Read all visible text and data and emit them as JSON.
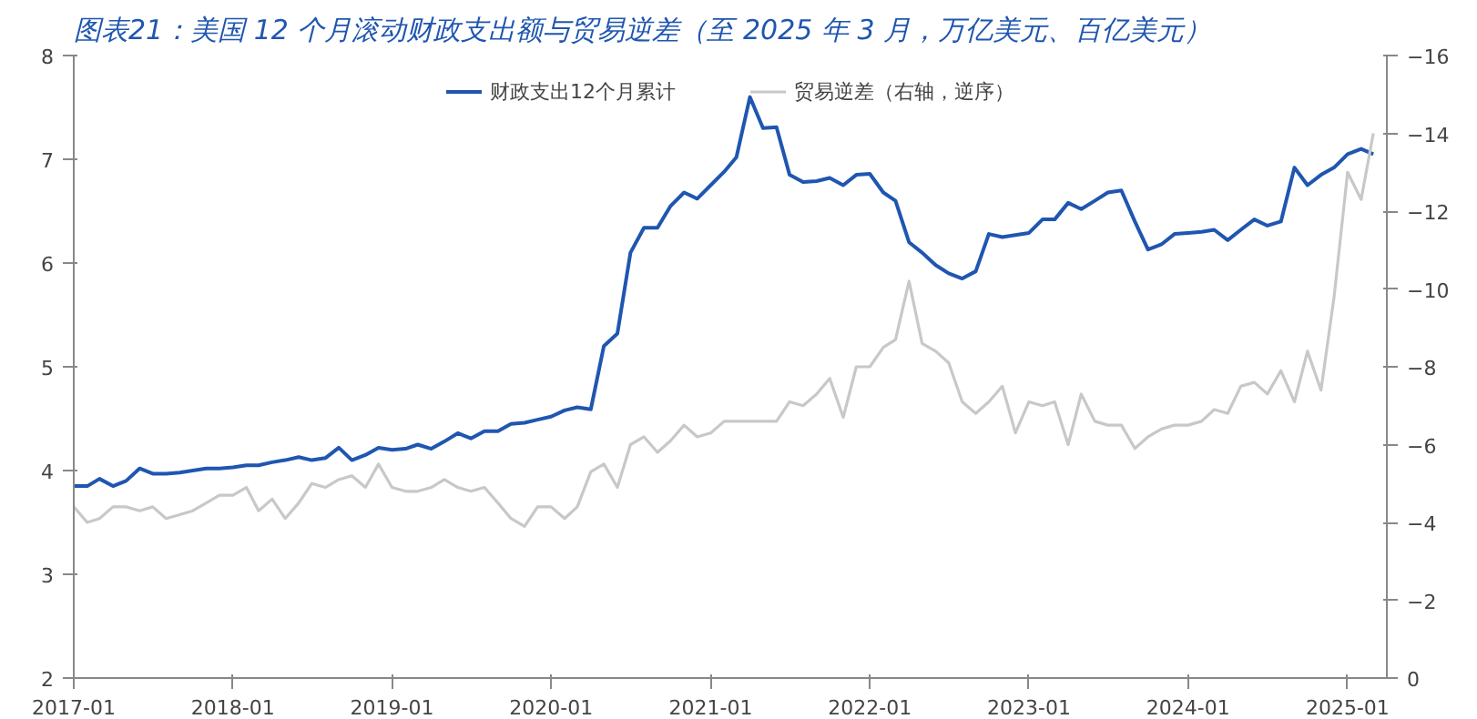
{
  "chart_data": {
    "type": "line",
    "title": "图表21：美国 12 个月滚动财政支出额与贸易逆差（至 2025 年 3 月，万亿美元、百亿美元）",
    "x": [
      "2017-01",
      "2017-02",
      "2017-03",
      "2017-04",
      "2017-05",
      "2017-06",
      "2017-07",
      "2017-08",
      "2017-09",
      "2017-10",
      "2017-11",
      "2017-12",
      "2018-01",
      "2018-02",
      "2018-03",
      "2018-04",
      "2018-05",
      "2018-06",
      "2018-07",
      "2018-08",
      "2018-09",
      "2018-10",
      "2018-11",
      "2018-12",
      "2019-01",
      "2019-02",
      "2019-03",
      "2019-04",
      "2019-05",
      "2019-06",
      "2019-07",
      "2019-08",
      "2019-09",
      "2019-10",
      "2019-11",
      "2019-12",
      "2020-01",
      "2020-02",
      "2020-03",
      "2020-04",
      "2020-05",
      "2020-06",
      "2020-07",
      "2020-08",
      "2020-09",
      "2020-10",
      "2020-11",
      "2020-12",
      "2021-01",
      "2021-02",
      "2021-03",
      "2021-04",
      "2021-05",
      "2021-06",
      "2021-07",
      "2021-08",
      "2021-09",
      "2021-10",
      "2021-11",
      "2021-12",
      "2022-01",
      "2022-02",
      "2022-03",
      "2022-04",
      "2022-05",
      "2022-06",
      "2022-07",
      "2022-08",
      "2022-09",
      "2022-10",
      "2022-11",
      "2022-12",
      "2023-01",
      "2023-02",
      "2023-03",
      "2023-04",
      "2023-05",
      "2023-06",
      "2023-07",
      "2023-08",
      "2023-09",
      "2023-10",
      "2023-11",
      "2023-12",
      "2024-01",
      "2024-02",
      "2024-03",
      "2024-04",
      "2024-05",
      "2024-06",
      "2024-07",
      "2024-08",
      "2024-09",
      "2024-10",
      "2024-11",
      "2024-12",
      "2025-01",
      "2025-02",
      "2025-03"
    ],
    "series": [
      {
        "name": "财政支出12个月累计",
        "color": "#1f56b0",
        "values": [
          3.85,
          3.85,
          3.92,
          3.85,
          3.9,
          4.02,
          3.97,
          3.97,
          3.98,
          4.0,
          4.02,
          4.02,
          4.03,
          4.05,
          4.05,
          4.08,
          4.1,
          4.13,
          4.1,
          4.12,
          4.22,
          4.1,
          4.15,
          4.22,
          4.2,
          4.21,
          4.25,
          4.21,
          4.28,
          4.36,
          4.31,
          4.38,
          4.38,
          4.45,
          4.46,
          4.49,
          4.52,
          4.58,
          4.61,
          4.59,
          5.2,
          5.32,
          6.1,
          6.34,
          6.34,
          6.55,
          6.68,
          6.62,
          6.75,
          6.88,
          7.02,
          7.6,
          7.3,
          7.31,
          6.85,
          6.78,
          6.79,
          6.82,
          6.75,
          6.85,
          6.86,
          6.68,
          6.6,
          6.2,
          6.1,
          5.98,
          5.9,
          5.85,
          5.92,
          6.28,
          6.25,
          6.27,
          6.29,
          6.42,
          6.42,
          6.58,
          6.52,
          6.6,
          6.68,
          6.7,
          6.4,
          6.13,
          6.18,
          6.28,
          6.29,
          6.3,
          6.32,
          6.22,
          6.32,
          6.42,
          6.36,
          6.4,
          6.92,
          6.75,
          6.85,
          6.92,
          7.05,
          7.1,
          7.05
        ]
      },
      {
        "name": "贸易逆差（右轴，逆序）",
        "color": "#c8c8c8",
        "axis": "y2",
        "values": [
          -4.4,
          -4.0,
          -4.1,
          -4.4,
          -4.4,
          -4.3,
          -4.4,
          -4.1,
          -4.2,
          -4.3,
          -4.5,
          -4.7,
          -4.7,
          -4.9,
          -4.3,
          -4.6,
          -4.1,
          -4.5,
          -5.0,
          -4.9,
          -5.1,
          -5.2,
          -4.9,
          -5.5,
          -4.9,
          -4.8,
          -4.8,
          -4.9,
          -5.1,
          -4.9,
          -4.8,
          -4.9,
          -4.5,
          -4.1,
          -3.9,
          -4.4,
          -4.4,
          -4.1,
          -4.4,
          -5.3,
          -5.5,
          -4.9,
          -6.0,
          -6.2,
          -5.8,
          -6.1,
          -6.5,
          -6.2,
          -6.3,
          -6.6,
          -6.6,
          -6.6,
          -6.6,
          -6.6,
          -7.1,
          -7.0,
          -7.3,
          -7.7,
          -6.7,
          -8.0,
          -8.0,
          -8.5,
          -8.7,
          -10.2,
          -8.6,
          -8.4,
          -8.1,
          -7.1,
          -6.8,
          -7.1,
          -7.5,
          -6.3,
          -7.1,
          -7.0,
          -7.1,
          -6.0,
          -7.3,
          -6.6,
          -6.5,
          -6.5,
          -5.9,
          -6.2,
          -6.4,
          -6.5,
          -6.5,
          -6.6,
          -6.9,
          -6.8,
          -7.5,
          -7.6,
          -7.3,
          -7.9,
          -7.1,
          -8.4,
          -7.4,
          -9.8,
          -13.0,
          -12.3,
          -14.0
        ]
      }
    ],
    "xlim": [
      "2017-01",
      "2025-04"
    ],
    "xticks": [
      "2017-01",
      "2018-01",
      "2019-01",
      "2020-01",
      "2021-01",
      "2022-01",
      "2023-01",
      "2024-01",
      "2025-01"
    ],
    "ylim": [
      2,
      8
    ],
    "yticks": [
      2,
      3,
      4,
      5,
      6,
      7,
      8
    ],
    "y2lim": [
      0,
      -16
    ],
    "y2ticks": [
      0,
      -2,
      -4,
      -6,
      -8,
      -10,
      -12,
      -14,
      -16
    ],
    "legend": "top",
    "grid": false
  }
}
